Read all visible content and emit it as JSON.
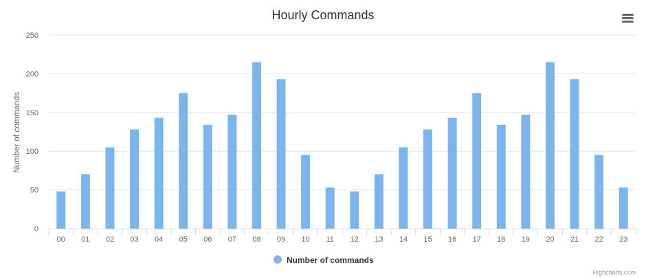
{
  "chart_data": {
    "type": "bar",
    "title": "Hourly Commands",
    "xlabel": "",
    "ylabel": "Number of commands",
    "categories": [
      "00",
      "01",
      "02",
      "03",
      "04",
      "05",
      "06",
      "07",
      "08",
      "09",
      "10",
      "11",
      "12",
      "13",
      "14",
      "15",
      "16",
      "17",
      "18",
      "19",
      "20",
      "21",
      "22",
      "23"
    ],
    "series": [
      {
        "name": "Number of commands",
        "color": "#7cb5ec",
        "values": [
          48,
          70,
          105,
          128,
          143,
          175,
          134,
          147,
          215,
          193,
          95,
          53,
          48,
          70,
          105,
          128,
          143,
          175,
          134,
          147,
          215,
          193,
          95,
          53
        ]
      }
    ],
    "ylim": [
      0,
      250
    ],
    "yticks": [
      0,
      50,
      100,
      150,
      200,
      250
    ],
    "grid": true,
    "legend_position": "bottom-center"
  },
  "ui": {
    "menu_icon": "hamburger-menu-icon",
    "credit": "Highcharts.com"
  },
  "colors": {
    "grid": "#e6e6e6",
    "axis_line": "#ccd6eb",
    "text": "#666666",
    "title": "#333333",
    "credit": "#999999",
    "menu": "#666666"
  }
}
